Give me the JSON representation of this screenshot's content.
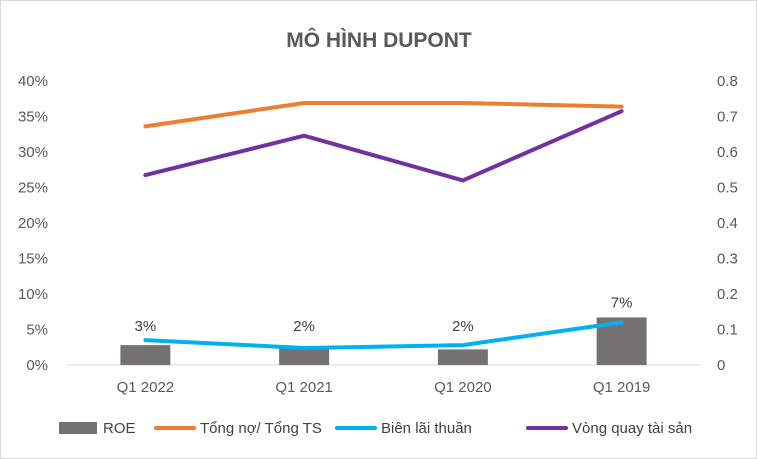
{
  "chart_data": {
    "type": "bar+line",
    "title": "MÔ HÌNH DUPONT",
    "categories": [
      "Q1 2022",
      "Q1 2021",
      "Q1 2020",
      "Q1 2019"
    ],
    "y_left": {
      "ticks": [
        "0%",
        "5%",
        "10%",
        "15%",
        "20%",
        "25%",
        "30%",
        "35%",
        "40%"
      ],
      "ylim": [
        0,
        0.4
      ]
    },
    "y_right": {
      "ticks": [
        "0",
        "0.1",
        "0.2",
        "0.3",
        "0.4",
        "0.5",
        "0.6",
        "0.7",
        "0.8"
      ],
      "ylim": [
        0,
        0.8
      ]
    },
    "series": [
      {
        "name": "ROE",
        "type": "bar",
        "axis": "left",
        "color": "#767171",
        "values": [
          0.028,
          0.024,
          0.022,
          0.067
        ],
        "data_labels": [
          "3%",
          "2%",
          "2%",
          "7%"
        ]
      },
      {
        "name": "Tổng nợ/ Tổng TS",
        "type": "line",
        "axis": "left",
        "color": "#ED7D31",
        "values": [
          0.336,
          0.369,
          0.369,
          0.364
        ]
      },
      {
        "name": "Biên lãi thuần",
        "type": "line",
        "axis": "left",
        "color": "#00B0F0",
        "values": [
          0.035,
          0.024,
          0.028,
          0.06
        ]
      },
      {
        "name": "Vòng quay tài sản",
        "type": "line",
        "axis": "right",
        "color": "#7030A0",
        "values": [
          0.535,
          0.646,
          0.52,
          0.715
        ]
      }
    ],
    "grid": false,
    "legend": "bottom"
  }
}
